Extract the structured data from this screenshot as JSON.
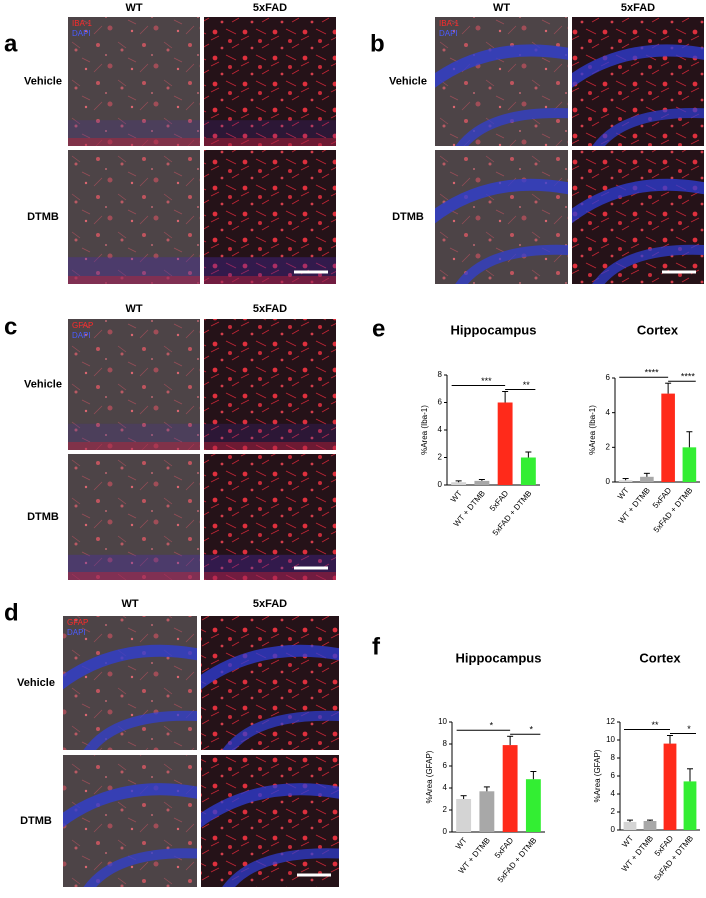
{
  "figure": {
    "image_panels": [
      {
        "letter": "a",
        "columns": [
          "WT",
          "5xFAD"
        ],
        "rows": [
          "Vehicle",
          "DTMB"
        ],
        "stains": [
          "IBA-1",
          "DAPI"
        ]
      },
      {
        "letter": "b",
        "columns": [
          "WT",
          "5xFAD"
        ],
        "rows": [
          "Vehicle",
          "DTMB"
        ],
        "stains": [
          "IBA-1",
          "DAPI"
        ]
      },
      {
        "letter": "c",
        "columns": [
          "WT",
          "5xFAD"
        ],
        "rows": [
          "Vehicle",
          "DTMB"
        ],
        "stains": [
          "GFAP",
          "DAPI"
        ]
      },
      {
        "letter": "d",
        "columns": [
          "WT",
          "5xFAD"
        ],
        "rows": [
          "Vehicle",
          "DTMB"
        ],
        "stains": [
          "GFAP",
          "DAPI"
        ]
      }
    ],
    "chart_panel_letters": [
      "e",
      "f"
    ]
  },
  "chart_data": [
    {
      "type": "bar",
      "title": "Hippocampus",
      "ylabel": "%Area (Iba-1)",
      "categories": [
        "WT",
        "WT + DTMB",
        "5xFAD",
        "5xFAD + DTMB"
      ],
      "values": [
        0.2,
        0.3,
        6.0,
        2.0
      ],
      "errors": [
        0.1,
        0.1,
        0.8,
        0.4
      ],
      "colors": [
        "#d4d4d4",
        "#a8a8a8",
        "#ff2a1a",
        "#33ee33"
      ],
      "ylim": [
        0,
        8
      ],
      "yticks": [
        0,
        2,
        4,
        6,
        8
      ],
      "significance": [
        {
          "label": "***",
          "compare": [
            "WT",
            "5xFAD"
          ]
        },
        {
          "label": "**",
          "compare": [
            "5xFAD",
            "5xFAD + DTMB"
          ]
        }
      ]
    },
    {
      "type": "bar",
      "title": "Cortex",
      "ylabel": "%Area (Iba-1)",
      "categories": [
        "WT",
        "WT + DTMB",
        "5xFAD",
        "5xFAD + DTMB"
      ],
      "values": [
        0.1,
        0.3,
        5.1,
        2.0
      ],
      "errors": [
        0.1,
        0.2,
        0.6,
        0.9
      ],
      "colors": [
        "#d4d4d4",
        "#a8a8a8",
        "#ff2a1a",
        "#33ee33"
      ],
      "ylim": [
        0,
        6
      ],
      "yticks": [
        0,
        2,
        4,
        6
      ],
      "significance": [
        {
          "label": "****",
          "compare": [
            "WT",
            "5xFAD"
          ]
        },
        {
          "label": "****",
          "compare": [
            "5xFAD",
            "5xFAD + DTMB"
          ]
        }
      ]
    },
    {
      "type": "bar",
      "title": "Hippocampus",
      "ylabel": "%Area (GFAP)",
      "categories": [
        "WT",
        "WT + DTMB",
        "5xFAD",
        "5xFAD + DTMB"
      ],
      "values": [
        3.0,
        3.7,
        7.9,
        4.8
      ],
      "errors": [
        0.3,
        0.4,
        0.8,
        0.7
      ],
      "colors": [
        "#d4d4d4",
        "#a8a8a8",
        "#ff2a1a",
        "#33ee33"
      ],
      "ylim": [
        0,
        10
      ],
      "yticks": [
        0,
        2,
        4,
        6,
        8,
        10
      ],
      "significance": [
        {
          "label": "*",
          "compare": [
            "WT",
            "5xFAD"
          ]
        },
        {
          "label": "*",
          "compare": [
            "5xFAD",
            "5xFAD + DTMB"
          ]
        }
      ]
    },
    {
      "type": "bar",
      "title": "Cortex",
      "ylabel": "%Area (GFAP)",
      "categories": [
        "WT",
        "WT + DTMB",
        "5xFAD",
        "5xFAD + DTMB"
      ],
      "values": [
        0.9,
        1.0,
        9.6,
        5.4
      ],
      "errors": [
        0.2,
        0.1,
        0.9,
        1.4
      ],
      "colors": [
        "#d4d4d4",
        "#a8a8a8",
        "#ff2a1a",
        "#33ee33"
      ],
      "ylim": [
        0,
        12
      ],
      "yticks": [
        0,
        2,
        4,
        6,
        8,
        10,
        12
      ],
      "significance": [
        {
          "label": "**",
          "compare": [
            "WT",
            "5xFAD"
          ]
        },
        {
          "label": "*",
          "compare": [
            "5xFAD",
            "5xFAD + DTMB"
          ]
        }
      ]
    }
  ]
}
